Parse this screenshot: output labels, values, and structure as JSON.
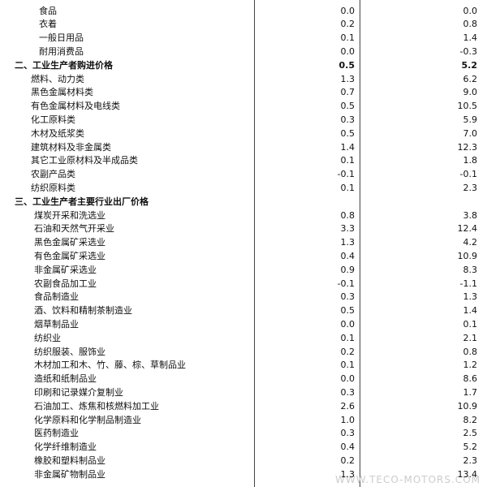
{
  "groups": [
    {
      "items": [
        {
          "label": "食品",
          "v1": "0.0",
          "v2": "0.0"
        },
        {
          "label": "衣着",
          "v1": "0.2",
          "v2": "0.8"
        },
        {
          "label": "一般日用品",
          "v1": "0.1",
          "v2": "1.4"
        },
        {
          "label": "耐用消费品",
          "v1": "0.0",
          "v2": "-0.3"
        }
      ]
    },
    {
      "heading": {
        "label": "二、工业生产者购进价格",
        "v1": "0.5",
        "v2": "5.2"
      },
      "items": [
        {
          "label": "燃料、动力类",
          "v1": "1.3",
          "v2": "6.2"
        },
        {
          "label": "黑色金属材料类",
          "v1": "0.7",
          "v2": "9.0"
        },
        {
          "label": "有色金属材料及电线类",
          "v1": "0.5",
          "v2": "10.5"
        },
        {
          "label": "化工原料类",
          "v1": "0.3",
          "v2": "5.9"
        },
        {
          "label": "木材及纸浆类",
          "v1": "0.5",
          "v2": "7.0"
        },
        {
          "label": "建筑材料及非金属类",
          "v1": "1.4",
          "v2": "12.3"
        },
        {
          "label": "其它工业原材料及半成品类",
          "v1": "0.1",
          "v2": "1.8"
        },
        {
          "label": "农副产品类",
          "v1": "-0.1",
          "v2": "-0.1"
        },
        {
          "label": "纺织原料类",
          "v1": "0.1",
          "v2": "2.3"
        }
      ]
    },
    {
      "heading": {
        "label": "三、工业生产者主要行业出厂价格"
      },
      "items": [
        {
          "label": "煤炭开采和洗选业",
          "v1": "0.8",
          "v2": "3.8"
        },
        {
          "label": "石油和天然气开采业",
          "v1": "3.3",
          "v2": "12.4"
        },
        {
          "label": "黑色金属矿采选业",
          "v1": "1.3",
          "v2": "4.2"
        },
        {
          "label": "有色金属矿采选业",
          "v1": "0.4",
          "v2": "10.9"
        },
        {
          "label": "非金属矿采选业",
          "v1": "0.9",
          "v2": "8.3"
        },
        {
          "label": "农副食品加工业",
          "v1": "-0.1",
          "v2": "-1.1"
        },
        {
          "label": "食品制造业",
          "v1": "0.3",
          "v2": "1.3"
        },
        {
          "label": "酒、饮料和精制茶制造业",
          "v1": "0.5",
          "v2": "1.4"
        },
        {
          "label": "烟草制品业",
          "v1": "0.0",
          "v2": "0.1"
        },
        {
          "label": "纺织业",
          "v1": "0.1",
          "v2": "2.1"
        },
        {
          "label": "纺织服装、服饰业",
          "v1": "0.2",
          "v2": "0.8"
        },
        {
          "label": "木材加工和木、竹、藤、棕、草制品业",
          "v1": "0.1",
          "v2": "1.2"
        },
        {
          "label": "造纸和纸制品业",
          "v1": "0.0",
          "v2": "8.6"
        },
        {
          "label": "印刷和记录媒介复制业",
          "v1": "0.3",
          "v2": "1.7"
        },
        {
          "label": "石油加工、炼焦和核燃料加工业",
          "v1": "2.6",
          "v2": "10.9"
        },
        {
          "label": "化学原料和化学制品制造业",
          "v1": "1.0",
          "v2": "8.2"
        },
        {
          "label": "医药制造业",
          "v1": "0.3",
          "v2": "2.5"
        },
        {
          "label": "化学纤维制造业",
          "v1": "0.4",
          "v2": "5.2"
        },
        {
          "label": "橡胶和塑料制品业",
          "v1": "0.2",
          "v2": "2.3"
        },
        {
          "label": "非金属矿物制品业",
          "v1": "1.3",
          "v2": "13.4"
        }
      ]
    }
  ],
  "watermark": "WWW.TECO-MOTORS.COM"
}
